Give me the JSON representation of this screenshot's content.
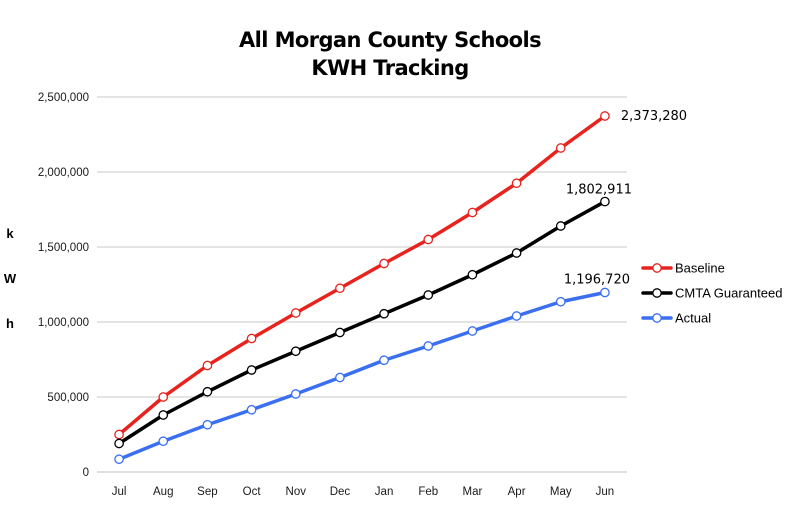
{
  "chart_data": {
    "type": "line",
    "title": "All Morgan County Schools",
    "subtitle": "KWH Tracking",
    "ylabel": "kWh",
    "ylabel_letters": [
      "k",
      "W",
      "h"
    ],
    "xlabel": "",
    "categories": [
      "Jul",
      "Aug",
      "Sep",
      "Oct",
      "Nov",
      "Dec",
      "Jan",
      "Feb",
      "Mar",
      "Apr",
      "May",
      "Jun"
    ],
    "ylim": [
      0,
      2500000
    ],
    "yticks": [
      0,
      500000,
      1000000,
      1500000,
      2000000,
      2500000
    ],
    "ytick_labels": [
      "0",
      "500,000",
      "1,000,000",
      "1,500,000",
      "2,000,000",
      "2,500,000"
    ],
    "grid": true,
    "legend_position": "right",
    "series": [
      {
        "name": "Baseline",
        "color": "#e8231e",
        "values": [
          250000,
          500000,
          710000,
          890000,
          1060000,
          1225000,
          1390000,
          1550000,
          1730000,
          1925000,
          2160000,
          2373280
        ],
        "end_label": "2,373,280"
      },
      {
        "name": "CMTA Guaranteed",
        "color": "#000000",
        "values": [
          190000,
          380000,
          535000,
          680000,
          805000,
          930000,
          1055000,
          1180000,
          1315000,
          1460000,
          1640000,
          1802911
        ],
        "end_label": "1,802,911"
      },
      {
        "name": "Actual",
        "color": "#3a6ff0",
        "values": [
          85000,
          205000,
          315000,
          415000,
          520000,
          630000,
          745000,
          840000,
          940000,
          1040000,
          1135000,
          1196720
        ],
        "end_label": "1,196,720"
      }
    ]
  }
}
